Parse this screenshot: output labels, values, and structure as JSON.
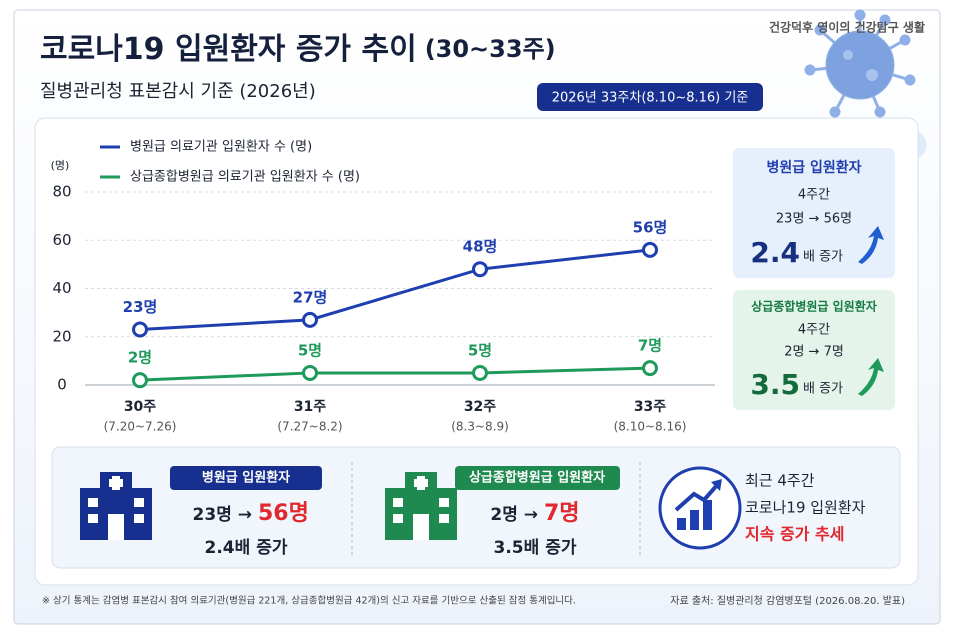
{
  "header": {
    "title": "코로나19 입원환자 증가 추이",
    "title_period": "(30~33주)",
    "subtitle": "질병관리청 표본감시 기준 (2026년)",
    "badge": "2026년 33주차(8.10~8.16) 기준",
    "brand": "건강덕후 영이의 건강탐구 생활"
  },
  "chart_data": {
    "type": "line",
    "y_unit_label": "(명)",
    "categories": [
      "30주",
      "31주",
      "32주",
      "33주"
    ],
    "category_dates": [
      "(7.20~7.26)",
      "(7.27~8.2)",
      "(8.3~8.9)",
      "(8.10~8.16)"
    ],
    "series": [
      {
        "name": "병원급 의료기관 입원환자 수 (명)",
        "color": "#1f3fb0",
        "values": [
          23,
          27,
          48,
          56
        ],
        "value_labels": [
          "23명",
          "27명",
          "48명",
          "56명"
        ]
      },
      {
        "name": "상급종합병원급 의료기관 입원환자 수 (명)",
        "color": "#1e9a5a",
        "values": [
          2,
          5,
          5,
          7
        ],
        "value_labels": [
          "2명",
          "5명",
          "5명",
          "7명"
        ]
      }
    ],
    "ylim": [
      0,
      80
    ],
    "yticks": [
      0,
      20,
      40,
      60,
      80
    ],
    "grid": true
  },
  "side_cards": [
    {
      "title": "병원급 입원환자",
      "period": "4주간",
      "change": "23명 → 56명",
      "ratio": "2.4",
      "ratio_unit": "배 증가"
    },
    {
      "title": "상급종합병원급 입원환자",
      "period": "4주간",
      "change": "2명 → 7명",
      "ratio": "3.5",
      "ratio_unit": "배 증가"
    }
  ],
  "summary": [
    {
      "label": "병원급 입원환자",
      "from": "23명 →",
      "to": "56명",
      "ratio": "2.4배 증가"
    },
    {
      "label": "상급종합병원급 입원환자",
      "from": "2명 →",
      "to": "7명",
      "ratio": "3.5배 증가"
    }
  ],
  "trend": {
    "line1": "최근 4주간",
    "line2": "코로나19 입원환자",
    "line3": "지속 증가 추세"
  },
  "footer": {
    "note": "※ 상기 통계는 감염병 표본감시 참여 의료기관(병원급 221개, 상급종합병원급 42개)의 신고 자료를 기반으로 산출된 잠정 통계입니다.",
    "source": "자료 출처: 질병관리청 감염병포털 (2026.08.20. 발표)"
  }
}
